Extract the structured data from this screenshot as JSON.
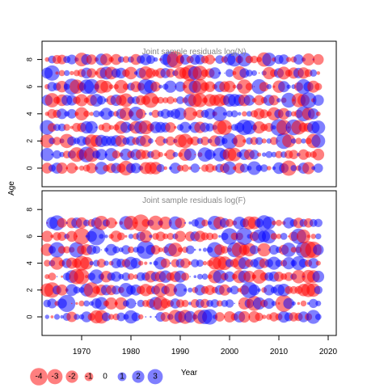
{
  "colors": {
    "positive": "#0000ff",
    "negative": "#ff0000",
    "frame": "#000000",
    "title": "#888888"
  },
  "labels": {
    "ylabel": "Age",
    "xlabel": "Year"
  },
  "legend": [
    {
      "value": -4,
      "label": "-4"
    },
    {
      "value": -3,
      "label": "-3"
    },
    {
      "value": -2,
      "label": "-2"
    },
    {
      "value": -1,
      "label": "-1"
    },
    {
      "value": 0,
      "label": "0"
    },
    {
      "value": 1,
      "label": "1"
    },
    {
      "value": 2,
      "label": "2"
    },
    {
      "value": 3,
      "label": "3"
    }
  ],
  "chart_data": [
    {
      "type": "scatter",
      "subtype": "bubble",
      "title": "Joint sample residuals log(N)",
      "ylabel": "Age",
      "xlim": [
        1962,
        2021
      ],
      "ylim": [
        -1,
        9
      ],
      "years": [
        1963,
        2018
      ],
      "ages": [
        0,
        8
      ],
      "y_ticks": [
        0,
        2,
        4,
        6,
        8
      ],
      "note": "bubble area ~ |residual|; red = negative, blue = positive"
    },
    {
      "type": "scatter",
      "subtype": "bubble",
      "title": "Joint sample residuals log(F)",
      "xlabel": "Year",
      "xlim": [
        1962,
        2021
      ],
      "ylim": [
        -1.5,
        9
      ],
      "years": [
        1963,
        2018
      ],
      "ages": [
        0,
        7
      ],
      "x_ticks": [
        1970,
        1980,
        1990,
        2000,
        2010,
        2020
      ],
      "y_ticks": [
        0,
        2,
        4,
        6,
        8
      ],
      "note": "bubble area ~ |residual|; red = negative, blue = positive"
    }
  ]
}
